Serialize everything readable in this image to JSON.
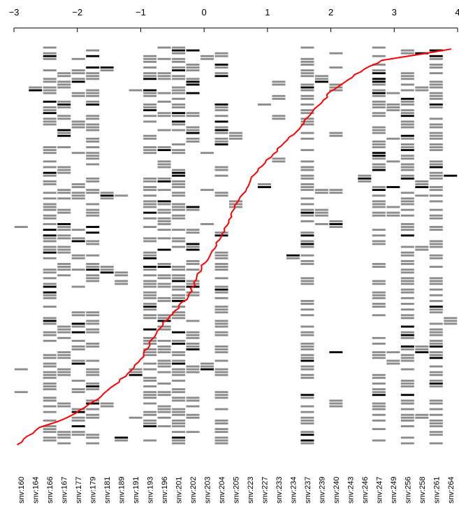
{
  "chart_data": {
    "type": "heatmap",
    "title": "",
    "xlabel": "",
    "ylabel": "",
    "axis": {
      "position": "top",
      "range": [
        -3,
        4
      ],
      "ticks": [
        {
          "value": -3,
          "label": "−3"
        },
        {
          "value": -2,
          "label": "−2"
        },
        {
          "value": -1,
          "label": "−1"
        },
        {
          "value": 0,
          "label": "0"
        },
        {
          "value": 1,
          "label": "1"
        },
        {
          "value": 2,
          "label": "2"
        },
        {
          "value": 3,
          "label": "3"
        },
        {
          "value": 4,
          "label": "4"
        }
      ]
    },
    "snv_labels": [
      "snv:160",
      "snv:164",
      "snv:166",
      "snv:167",
      "snv:177",
      "snv:179",
      "snv:181",
      "snv:189",
      "snv:191",
      "snv:193",
      "snv:196",
      "snv:201",
      "snv:202",
      "snv:203",
      "snv:204",
      "snv:205",
      "snv:223",
      "snv:227",
      "snv:233",
      "snv:234",
      "snv:237",
      "snv:239",
      "snv:240",
      "snv:243",
      "snv:246",
      "snv:247",
      "snv:249",
      "snv:256",
      "snv:258",
      "snv:261",
      "snv:264"
    ],
    "n_samples": 140,
    "cell_values": [
      "none",
      "heterozygous",
      "homozygous"
    ],
    "colors": {
      "none": "#ffffff",
      "heterozygous": "#8c8c8c",
      "homozygous": "#000000",
      "curve": "#ff0000",
      "axis": "#000000"
    },
    "column_density": [
      0.01,
      0.01,
      0.62,
      0.22,
      0.22,
      0.42,
      0.05,
      0.02,
      0.02,
      0.44,
      0.45,
      0.62,
      0.18,
      0.04,
      0.3,
      0.03,
      0.01,
      0.01,
      0.01,
      0.01,
      0.55,
      0.05,
      0.06,
      0.01,
      0.01,
      0.48,
      0.07,
      0.62,
      0.07,
      0.58,
      0.01
    ],
    "curve_anchors": [
      {
        "rank": 0,
        "value": -2.95
      },
      {
        "rank": 6,
        "value": -2.6
      },
      {
        "rank": 10,
        "value": -2.1
      },
      {
        "rank": 16,
        "value": -1.7
      },
      {
        "rank": 24,
        "value": -1.25
      },
      {
        "rank": 30,
        "value": -1.0
      },
      {
        "rank": 40,
        "value": -0.75
      },
      {
        "rank": 52,
        "value": -0.25
      },
      {
        "rank": 62,
        "value": -0.05
      },
      {
        "rank": 74,
        "value": 0.3
      },
      {
        "rank": 84,
        "value": 0.5
      },
      {
        "rank": 96,
        "value": 0.82
      },
      {
        "rank": 110,
        "value": 1.45
      },
      {
        "rank": 124,
        "value": 2.0
      },
      {
        "rank": 131,
        "value": 2.45
      },
      {
        "rank": 135,
        "value": 2.82
      },
      {
        "rank": 139,
        "value": 3.9
      }
    ]
  }
}
